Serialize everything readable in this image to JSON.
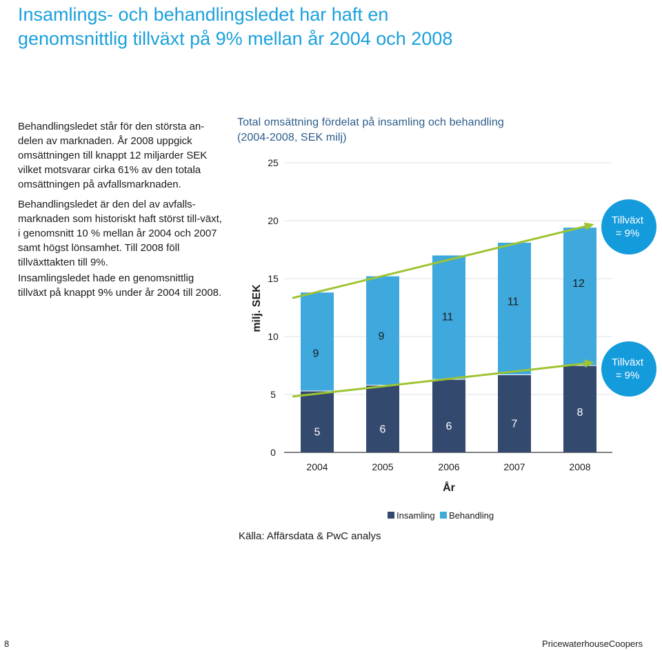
{
  "page": {
    "title": "Insamlings- och behandlingsledet har haft en genomsnittlig tillväxt på 9% mellan år 2004 och 2008",
    "paragraphs": [
      "Behandlingsledet står för den största an-delen av marknaden. År 2008 uppgick omsättningen till knappt 12 miljarder SEK vilket motsvarar cirka 61% av den totala omsättningen på avfallsmarknaden.",
      "Behandlingsledet är den del av avfalls-marknaden som historiskt haft störst till-växt, i genomsnitt 10 % mellan år 2004 och 2007 samt högst lönsamhet. Till 2008 föll tillväxttakten till 9%.",
      "Insamlingsledet hade en genomsnittlig tillväxt på knappt 9% under år 2004 till 2008."
    ],
    "source": "Källa: Affärsdata & PwC analys",
    "page_number": "8",
    "brand": "PricewaterhouseCoopers"
  },
  "chart_data": {
    "type": "bar",
    "stacked": true,
    "title": "Total omsättning fördelat på insamling och behandling",
    "subtitle": "(2004-2008, SEK milj)",
    "xlabel": "År",
    "ylabel": "milj. SEK",
    "ylim": [
      0,
      25
    ],
    "yticks": [
      0,
      5,
      10,
      15,
      20,
      25
    ],
    "grid": true,
    "categories": [
      "2004",
      "2005",
      "2006",
      "2007",
      "2008"
    ],
    "series": [
      {
        "name": "Insamling",
        "color": "#34496e",
        "values": [
          5.3,
          5.8,
          6.3,
          6.7,
          7.5
        ],
        "labels": [
          "5",
          "6",
          "6",
          "7",
          "8"
        ]
      },
      {
        "name": "Behandling",
        "color": "#3fa9de",
        "values": [
          8.5,
          9.4,
          10.7,
          11.4,
          11.9
        ],
        "labels": [
          "9",
          "9",
          "11",
          "11",
          "12"
        ]
      }
    ],
    "legend": "bottom-right",
    "annotations": [
      {
        "text": "Tillväxt\n= 9%",
        "applies_to": "Behandling"
      },
      {
        "text": "Tillväxt\n= 9%",
        "applies_to": "Insamling"
      }
    ],
    "trend_color": "#9dc431",
    "badge_color": "#139bdc"
  }
}
